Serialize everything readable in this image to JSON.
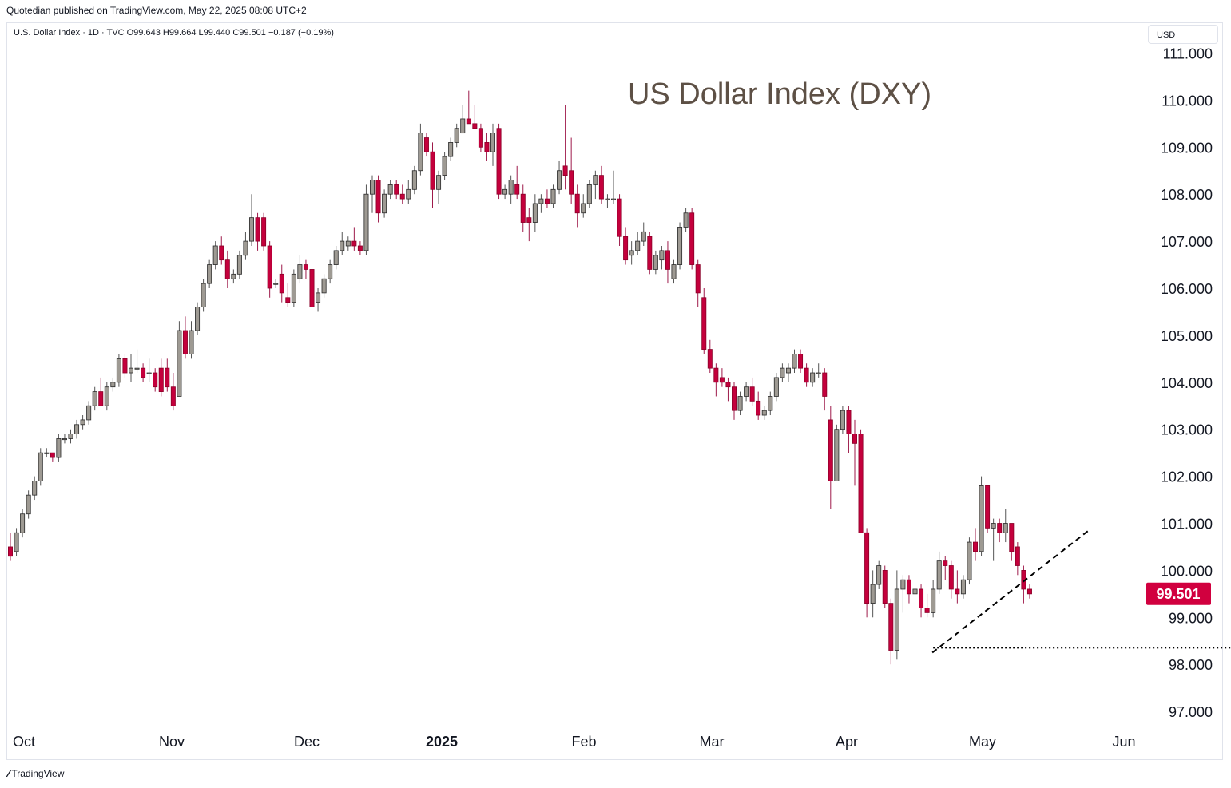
{
  "header": {
    "published_line": "Quotedian published on TradingView.com, May 22, 2025 08:08 UTC+2",
    "symbol_line": "U.S. Dollar Index · 1D · TVC  O99.643  H99.664  L99.440  C99.501  −0.187 (−0.19%)",
    "currency_button": "USD"
  },
  "footer": {
    "logo_text": "TradingView",
    "logo_icon": "tradingview-logo-icon"
  },
  "colors": {
    "up_fill": "#9e9a93",
    "up_border": "#2a2a2a",
    "down_fill": "#c4003c",
    "down_border": "#8a0028",
    "wick_up": "#555555",
    "wick_down": "#9e1a4a",
    "last_price_bg": "#d1003f",
    "title_color": "#5d5045"
  },
  "chart_data": {
    "type": "candlestick",
    "title": "US Dollar Index (DXY)",
    "xlabel": "",
    "ylabel": "",
    "ylim": [
      96.4,
      111.6
    ],
    "y_ticks": [
      "111.000",
      "110.000",
      "109.000",
      "108.000",
      "107.000",
      "106.000",
      "105.000",
      "104.000",
      "103.000",
      "102.000",
      "101.000",
      "100.000",
      "99.000",
      "98.000",
      "97.000"
    ],
    "x_ticks": [
      "Oct",
      "Nov",
      "Dec",
      "2025",
      "Feb",
      "Mar",
      "Apr",
      "May",
      "Jun"
    ],
    "x_tick_bold": "2025",
    "last_price": "99.501",
    "last_price_value": 99.501,
    "candles": [
      [
        100.5,
        100.8,
        100.2,
        100.3
      ],
      [
        100.4,
        100.9,
        100.3,
        100.8
      ],
      [
        100.8,
        101.3,
        100.7,
        101.2
      ],
      [
        101.2,
        101.7,
        101.1,
        101.6
      ],
      [
        101.6,
        102.0,
        101.5,
        101.9
      ],
      [
        101.9,
        102.6,
        101.8,
        102.5
      ],
      [
        102.5,
        102.6,
        102.4,
        102.5
      ],
      [
        102.5,
        102.5,
        102.3,
        102.4
      ],
      [
        102.4,
        102.9,
        102.3,
        102.8
      ],
      [
        102.8,
        102.9,
        102.7,
        102.8
      ],
      [
        102.8,
        103.0,
        102.7,
        102.9
      ],
      [
        102.9,
        103.2,
        102.8,
        103.1
      ],
      [
        103.1,
        103.3,
        103.0,
        103.2
      ],
      [
        103.2,
        103.6,
        103.1,
        103.5
      ],
      [
        103.5,
        103.9,
        103.4,
        103.8
      ],
      [
        103.8,
        104.1,
        103.5,
        103.5
      ],
      [
        103.5,
        104.0,
        103.4,
        103.9
      ],
      [
        103.9,
        104.1,
        103.8,
        104.0
      ],
      [
        104.0,
        104.6,
        103.9,
        104.5
      ],
      [
        104.5,
        104.6,
        104.1,
        104.2
      ],
      [
        104.2,
        104.6,
        104.0,
        104.3
      ],
      [
        104.3,
        104.7,
        104.2,
        104.3
      ],
      [
        104.3,
        104.4,
        104.0,
        104.1
      ],
      [
        104.2,
        104.5,
        104.0,
        104.2
      ],
      [
        104.2,
        104.3,
        103.8,
        103.9
      ],
      [
        104.3,
        104.5,
        103.7,
        103.8
      ],
      [
        104.3,
        104.5,
        103.8,
        103.9
      ],
      [
        103.9,
        104.2,
        103.4,
        103.5
      ],
      [
        103.7,
        105.3,
        103.7,
        105.1
      ],
      [
        105.1,
        105.4,
        104.5,
        104.6
      ],
      [
        104.6,
        105.3,
        104.5,
        105.1
      ],
      [
        105.1,
        105.7,
        105.0,
        105.6
      ],
      [
        105.6,
        106.2,
        105.5,
        106.1
      ],
      [
        106.1,
        106.6,
        106.0,
        106.5
      ],
      [
        106.5,
        107.0,
        106.4,
        106.9
      ],
      [
        106.9,
        107.1,
        106.5,
        106.6
      ],
      [
        106.6,
        106.8,
        106.0,
        106.2
      ],
      [
        106.2,
        106.4,
        106.1,
        106.3
      ],
      [
        106.3,
        106.8,
        106.2,
        106.7
      ],
      [
        106.7,
        107.2,
        106.6,
        107.0
      ],
      [
        107.0,
        108.0,
        106.9,
        107.5
      ],
      [
        107.5,
        107.6,
        106.8,
        107.0
      ],
      [
        107.5,
        107.6,
        106.8,
        106.9
      ],
      [
        106.9,
        107.0,
        105.8,
        106.0
      ],
      [
        106.1,
        106.2,
        106.0,
        106.1
      ],
      [
        106.3,
        106.5,
        105.7,
        105.9
      ],
      [
        105.8,
        106.1,
        105.6,
        105.7
      ],
      [
        105.7,
        106.4,
        105.6,
        106.3
      ],
      [
        106.2,
        106.7,
        106.1,
        106.5
      ],
      [
        106.5,
        106.6,
        106.2,
        106.4
      ],
      [
        106.4,
        106.5,
        105.4,
        105.6
      ],
      [
        105.7,
        106.0,
        105.5,
        105.9
      ],
      [
        105.9,
        106.3,
        105.8,
        106.2
      ],
      [
        106.2,
        106.6,
        106.1,
        106.5
      ],
      [
        106.5,
        106.9,
        106.4,
        106.8
      ],
      [
        106.8,
        107.2,
        106.7,
        107.0
      ],
      [
        106.9,
        107.1,
        106.8,
        107.0
      ],
      [
        107.0,
        107.3,
        106.8,
        106.9
      ],
      [
        106.9,
        107.0,
        106.7,
        106.8
      ],
      [
        106.8,
        108.2,
        106.7,
        108.0
      ],
      [
        108.0,
        108.4,
        107.6,
        108.3
      ],
      [
        108.3,
        108.4,
        107.4,
        107.6
      ],
      [
        107.6,
        108.1,
        107.5,
        108.0
      ],
      [
        108.0,
        108.3,
        107.9,
        108.2
      ],
      [
        108.2,
        108.3,
        107.9,
        108.0
      ],
      [
        108.0,
        108.2,
        107.8,
        107.9
      ],
      [
        107.9,
        108.3,
        107.8,
        108.1
      ],
      [
        108.1,
        108.6,
        108.0,
        108.5
      ],
      [
        108.5,
        109.5,
        108.4,
        109.3
      ],
      [
        109.2,
        109.3,
        108.8,
        108.9
      ],
      [
        108.9,
        109.1,
        107.7,
        108.1
      ],
      [
        108.1,
        108.5,
        107.8,
        108.4
      ],
      [
        108.4,
        108.9,
        108.3,
        108.8
      ],
      [
        108.8,
        109.2,
        108.7,
        109.1
      ],
      [
        109.1,
        109.5,
        109.0,
        109.4
      ],
      [
        109.3,
        109.9,
        109.3,
        109.6
      ],
      [
        109.6,
        110.2,
        109.5,
        109.5
      ],
      [
        109.5,
        109.9,
        109.4,
        109.4
      ],
      [
        109.4,
        109.5,
        108.9,
        109.0
      ],
      [
        109.1,
        109.3,
        108.7,
        108.9
      ],
      [
        108.9,
        109.5,
        108.6,
        109.3
      ],
      [
        109.4,
        109.5,
        107.9,
        108.0
      ],
      [
        108.0,
        108.2,
        107.9,
        108.1
      ],
      [
        108.0,
        108.4,
        107.8,
        108.3
      ],
      [
        108.2,
        108.6,
        107.9,
        108.0
      ],
      [
        108.0,
        108.2,
        107.2,
        107.4
      ],
      [
        107.5,
        107.7,
        107.0,
        107.4
      ],
      [
        107.4,
        108.0,
        107.2,
        107.8
      ],
      [
        107.8,
        108.0,
        107.6,
        107.9
      ],
      [
        107.9,
        108.1,
        107.7,
        107.8
      ],
      [
        107.8,
        108.2,
        107.7,
        108.1
      ],
      [
        108.1,
        108.7,
        108.0,
        108.5
      ],
      [
        108.6,
        109.9,
        108.1,
        108.4
      ],
      [
        108.5,
        109.2,
        107.8,
        108.0
      ],
      [
        108.0,
        108.2,
        107.3,
        107.6
      ],
      [
        107.6,
        108.0,
        107.5,
        107.8
      ],
      [
        107.8,
        108.3,
        107.7,
        108.2
      ],
      [
        108.2,
        108.5,
        107.9,
        108.4
      ],
      [
        108.4,
        108.6,
        107.8,
        107.9
      ],
      [
        107.9,
        108.0,
        107.7,
        107.9
      ],
      [
        107.9,
        108.5,
        107.8,
        107.9
      ],
      [
        107.9,
        108.0,
        106.9,
        107.1
      ],
      [
        107.1,
        107.3,
        106.5,
        106.6
      ],
      [
        106.7,
        107.0,
        106.5,
        106.8
      ],
      [
        106.8,
        107.2,
        106.7,
        107.0
      ],
      [
        107.0,
        107.4,
        106.9,
        107.2
      ],
      [
        107.1,
        107.2,
        106.3,
        106.4
      ],
      [
        106.4,
        106.8,
        106.3,
        106.7
      ],
      [
        106.6,
        106.9,
        106.4,
        106.8
      ],
      [
        106.8,
        107.0,
        106.1,
        106.4
      ],
      [
        106.2,
        106.6,
        106.1,
        106.5
      ],
      [
        106.5,
        107.4,
        106.4,
        107.3
      ],
      [
        107.3,
        107.7,
        107.2,
        107.6
      ],
      [
        107.6,
        107.7,
        106.4,
        106.5
      ],
      [
        106.5,
        106.6,
        105.6,
        105.9
      ],
      [
        105.8,
        106.0,
        104.6,
        104.7
      ],
      [
        104.7,
        104.9,
        104.2,
        104.3
      ],
      [
        104.3,
        104.4,
        103.7,
        104.0
      ],
      [
        104.1,
        104.3,
        103.9,
        104.0
      ],
      [
        104.0,
        104.1,
        103.6,
        103.9
      ],
      [
        103.9,
        104.0,
        103.2,
        103.4
      ],
      [
        103.4,
        103.8,
        103.3,
        103.7
      ],
      [
        103.7,
        104.0,
        103.6,
        103.9
      ],
      [
        103.9,
        104.1,
        103.5,
        103.6
      ],
      [
        103.6,
        103.8,
        103.2,
        103.3
      ],
      [
        103.3,
        103.5,
        103.2,
        103.4
      ],
      [
        103.4,
        103.8,
        103.3,
        103.7
      ],
      [
        103.7,
        104.2,
        103.6,
        104.1
      ],
      [
        104.1,
        104.4,
        104.0,
        104.3
      ],
      [
        104.2,
        104.4,
        104.0,
        104.3
      ],
      [
        104.3,
        104.7,
        104.2,
        104.6
      ],
      [
        104.6,
        104.7,
        104.2,
        104.3
      ],
      [
        104.3,
        104.4,
        103.9,
        104.0
      ],
      [
        104.0,
        104.3,
        103.9,
        104.2
      ],
      [
        104.2,
        104.4,
        104.1,
        104.2
      ],
      [
        104.2,
        104.3,
        103.4,
        103.7
      ],
      [
        103.2,
        103.5,
        101.3,
        101.9
      ],
      [
        101.9,
        103.1,
        101.9,
        103.0
      ],
      [
        103.0,
        103.5,
        102.9,
        103.4
      ],
      [
        103.4,
        103.5,
        102.5,
        102.9
      ],
      [
        102.9,
        103.2,
        101.8,
        102.7
      ],
      [
        102.9,
        103.0,
        100.8,
        100.8
      ],
      [
        100.8,
        100.9,
        99.0,
        99.3
      ],
      [
        99.3,
        100.0,
        99.0,
        99.7
      ],
      [
        99.7,
        100.2,
        99.6,
        100.1
      ],
      [
        100.0,
        100.1,
        99.2,
        99.3
      ],
      [
        99.3,
        99.4,
        98.0,
        98.3
      ],
      [
        98.3,
        100.0,
        98.1,
        99.6
      ],
      [
        99.6,
        99.9,
        99.1,
        99.8
      ],
      [
        99.8,
        99.9,
        99.3,
        99.5
      ],
      [
        99.5,
        99.9,
        99.3,
        99.6
      ],
      [
        99.6,
        99.7,
        99.0,
        99.2
      ],
      [
        99.2,
        99.5,
        99.0,
        99.1
      ],
      [
        99.1,
        99.8,
        99.0,
        99.6
      ],
      [
        99.6,
        100.4,
        99.5,
        100.2
      ],
      [
        100.2,
        100.3,
        99.8,
        100.1
      ],
      [
        100.1,
        100.2,
        99.4,
        99.6
      ],
      [
        99.6,
        100.0,
        99.3,
        99.5
      ],
      [
        99.5,
        99.9,
        99.4,
        99.8
      ],
      [
        99.8,
        100.7,
        99.7,
        100.6
      ],
      [
        100.6,
        100.9,
        100.2,
        100.4
      ],
      [
        100.4,
        102.0,
        100.3,
        101.8
      ],
      [
        101.8,
        101.8,
        100.8,
        100.9
      ],
      [
        100.9,
        101.1,
        100.2,
        101.0
      ],
      [
        101.0,
        101.1,
        100.6,
        100.8
      ],
      [
        100.8,
        101.3,
        100.6,
        101.0
      ],
      [
        101.0,
        101.0,
        100.2,
        100.4
      ],
      [
        100.5,
        100.6,
        99.9,
        100.1
      ],
      [
        100.0,
        100.1,
        99.3,
        99.6
      ],
      [
        99.6,
        99.7,
        99.4,
        99.5
      ]
    ],
    "trendline": {
      "style": "dashed",
      "from": [
        153,
        98.25
      ],
      "to": [
        178,
        100.85
      ]
    },
    "support_line": {
      "style": "dotted",
      "value": 98.35,
      "from_index": 153,
      "to_index": 205
    }
  }
}
